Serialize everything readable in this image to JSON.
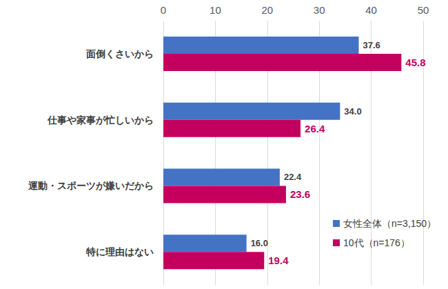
{
  "chart_data": {
    "type": "bar",
    "orientation": "horizontal",
    "categories": [
      "面倒くさいから",
      "仕事や家事が忙しいから",
      "運動・スポーツが嫌いだから",
      "特に理由はない"
    ],
    "series": [
      {
        "name": "女性全体（n=3,150）",
        "color": "#4472c4",
        "values": [
          37.6,
          34.0,
          22.4,
          16.0
        ],
        "value_labels": [
          "37.6",
          "34.0",
          "22.4",
          "16.0"
        ]
      },
      {
        "name": "10代（n=176）",
        "color": "#c4005f",
        "values": [
          45.8,
          26.4,
          23.6,
          19.4
        ],
        "value_labels": [
          "45.8",
          "26.4",
          "23.6",
          "19.4"
        ]
      }
    ],
    "xlim": [
      0,
      50
    ],
    "xticks": [
      0,
      10,
      20,
      30,
      40,
      50
    ],
    "grid": true,
    "data_labels": true,
    "legend": "lower right"
  }
}
